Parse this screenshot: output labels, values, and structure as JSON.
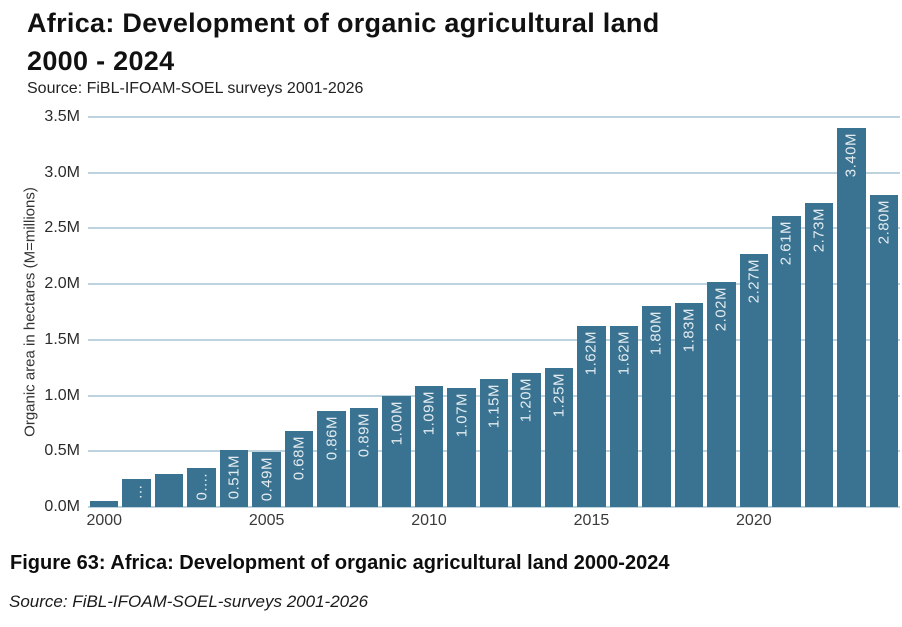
{
  "header": {
    "title_line1": "Africa: Development of organic agricultural land",
    "title_line2": "2000 - 2024",
    "source": "Source: FiBL-IFOAM-SOEL surveys 2001-2026"
  },
  "caption": {
    "figure_label": "Figure 63: Africa: Development of organic agricultural land 2000-2024",
    "source": "Source: FiBL-IFOAM-SOEL-surveys 2001-2026"
  },
  "chart_data": {
    "type": "bar",
    "title": "Africa: Development of organic agricultural land 2000 - 2024",
    "xlabel": "",
    "ylabel": "Organic area in hectares (M=millions)",
    "ylim": [
      0,
      3.5
    ],
    "grid": true,
    "legend": false,
    "ytick_labels": [
      "0.0M",
      "0.5M",
      "1.0M",
      "1.5M",
      "2.0M",
      "2.5M",
      "3.0M",
      "3.5M"
    ],
    "ytick_values": [
      0,
      0.5,
      1.0,
      1.5,
      2.0,
      2.5,
      3.0,
      3.5
    ],
    "xtick_labels": [
      "2000",
      "2005",
      "2010",
      "2015",
      "2020"
    ],
    "categories": [
      "2000",
      "2001",
      "2002",
      "2003",
      "2004",
      "2005",
      "2006",
      "2007",
      "2008",
      "2009",
      "2010",
      "2011",
      "2012",
      "2013",
      "2014",
      "2015",
      "2016",
      "2017",
      "2018",
      "2019",
      "2020",
      "2021",
      "2022",
      "2023",
      "2024"
    ],
    "values": [
      0.05,
      0.25,
      0.3,
      0.35,
      0.51,
      0.49,
      0.68,
      0.86,
      0.89,
      1.0,
      1.09,
      1.07,
      1.15,
      1.2,
      1.25,
      1.62,
      1.62,
      1.8,
      1.83,
      2.02,
      2.27,
      2.61,
      2.73,
      3.4,
      2.8
    ],
    "bar_labels": [
      "",
      "…",
      "",
      "0....",
      "0.51M",
      "0.49M",
      "0.68M",
      "0.86M",
      "0.89M",
      "1.00M",
      "1.09M",
      "1.07M",
      "1.15M",
      "1.20M",
      "1.25M",
      "1.62M",
      "1.62M",
      "1.80M",
      "1.83M",
      "2.02M",
      "2.27M",
      "2.61M",
      "2.73M",
      "3.40M",
      "2.80M"
    ],
    "colors": {
      "bar": "#3A7391",
      "gridline": "#BDD3DE",
      "bar_label": "#E4ECF1",
      "axis_text": "#2B2B2B"
    }
  }
}
